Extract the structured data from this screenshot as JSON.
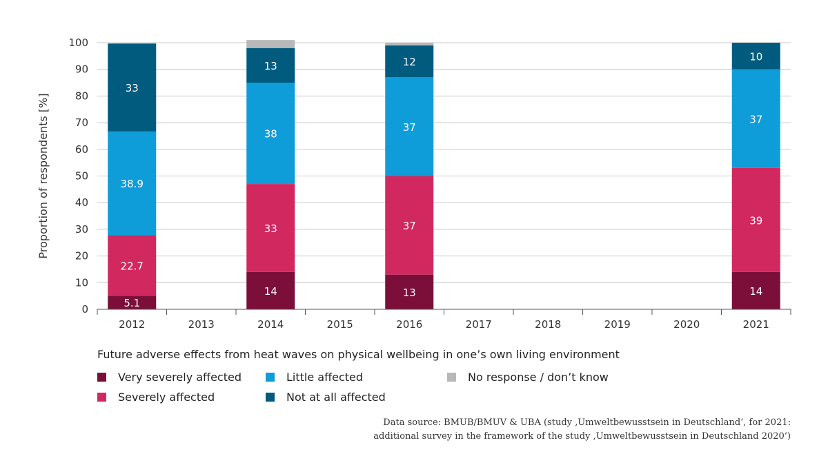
{
  "chart_data": {
    "type": "bar",
    "stacked": true,
    "title": "",
    "xlabel": "",
    "ylabel": "Proportion of respondents [%]",
    "ylim": [
      0,
      100
    ],
    "yticks": [
      0,
      10,
      20,
      30,
      40,
      50,
      60,
      70,
      80,
      90,
      100
    ],
    "grid": "horizontal",
    "categories": [
      "2012",
      "2013",
      "2014",
      "2015",
      "2016",
      "2017",
      "2018",
      "2019",
      "2020",
      "2021"
    ],
    "series": [
      {
        "name": "Very severely affected",
        "color": "#7b0f3a",
        "values": [
          5.1,
          null,
          14,
          null,
          13,
          null,
          null,
          null,
          null,
          14
        ]
      },
      {
        "name": "Severely affected",
        "color": "#d0285f",
        "values": [
          22.7,
          null,
          33,
          null,
          37,
          null,
          null,
          null,
          null,
          39
        ]
      },
      {
        "name": "Little affected",
        "color": "#0f9dd9",
        "values": [
          38.9,
          null,
          38,
          null,
          37,
          null,
          null,
          null,
          null,
          37
        ]
      },
      {
        "name": "Not at all affected",
        "color": "#005b7f",
        "values": [
          33,
          null,
          13,
          null,
          12,
          null,
          null,
          null,
          null,
          10
        ]
      },
      {
        "name": "No response / don’t know",
        "color": "#b8b8b8",
        "values": [
          0,
          null,
          3,
          null,
          1,
          null,
          null,
          null,
          null,
          0
        ]
      }
    ],
    "data_labels": [
      [
        "5.1",
        null,
        "14",
        null,
        "13",
        null,
        null,
        null,
        null,
        "14"
      ],
      [
        "22.7",
        null,
        "33",
        null,
        "37",
        null,
        null,
        null,
        null,
        "39"
      ],
      [
        "38.9",
        null,
        "38",
        null,
        "37",
        null,
        null,
        null,
        null,
        "37"
      ],
      [
        "33",
        null,
        "13",
        null,
        "12",
        null,
        null,
        null,
        null,
        "10"
      ],
      [
        null,
        null,
        null,
        null,
        null,
        null,
        null,
        null,
        null,
        null
      ]
    ],
    "legend_title": "Future adverse effects from heat waves on physical wellbeing in one’s own living environment",
    "legend_position": "bottom"
  },
  "legend": {
    "title": "Future adverse effects from heat waves on physical wellbeing in one’s own living environment",
    "items": [
      {
        "label": "Very severely affected",
        "color": "#7b0f3a"
      },
      {
        "label": "Severely affected",
        "color": "#d0285f"
      },
      {
        "label": "Little affected",
        "color": "#0f9dd9"
      },
      {
        "label": "Not at all affected",
        "color": "#005b7f"
      },
      {
        "label": "No response / don’t know",
        "color": "#b8b8b8"
      }
    ]
  },
  "source": {
    "line1": "Data source: BMUB/BMUV & UBA (study ‚Umweltbewusstsein in Deutschland‘, for 2021:",
    "line2": "additional survey in the framework of the study ‚Umweltbewusstsein in Deutschland 2020‘)"
  }
}
